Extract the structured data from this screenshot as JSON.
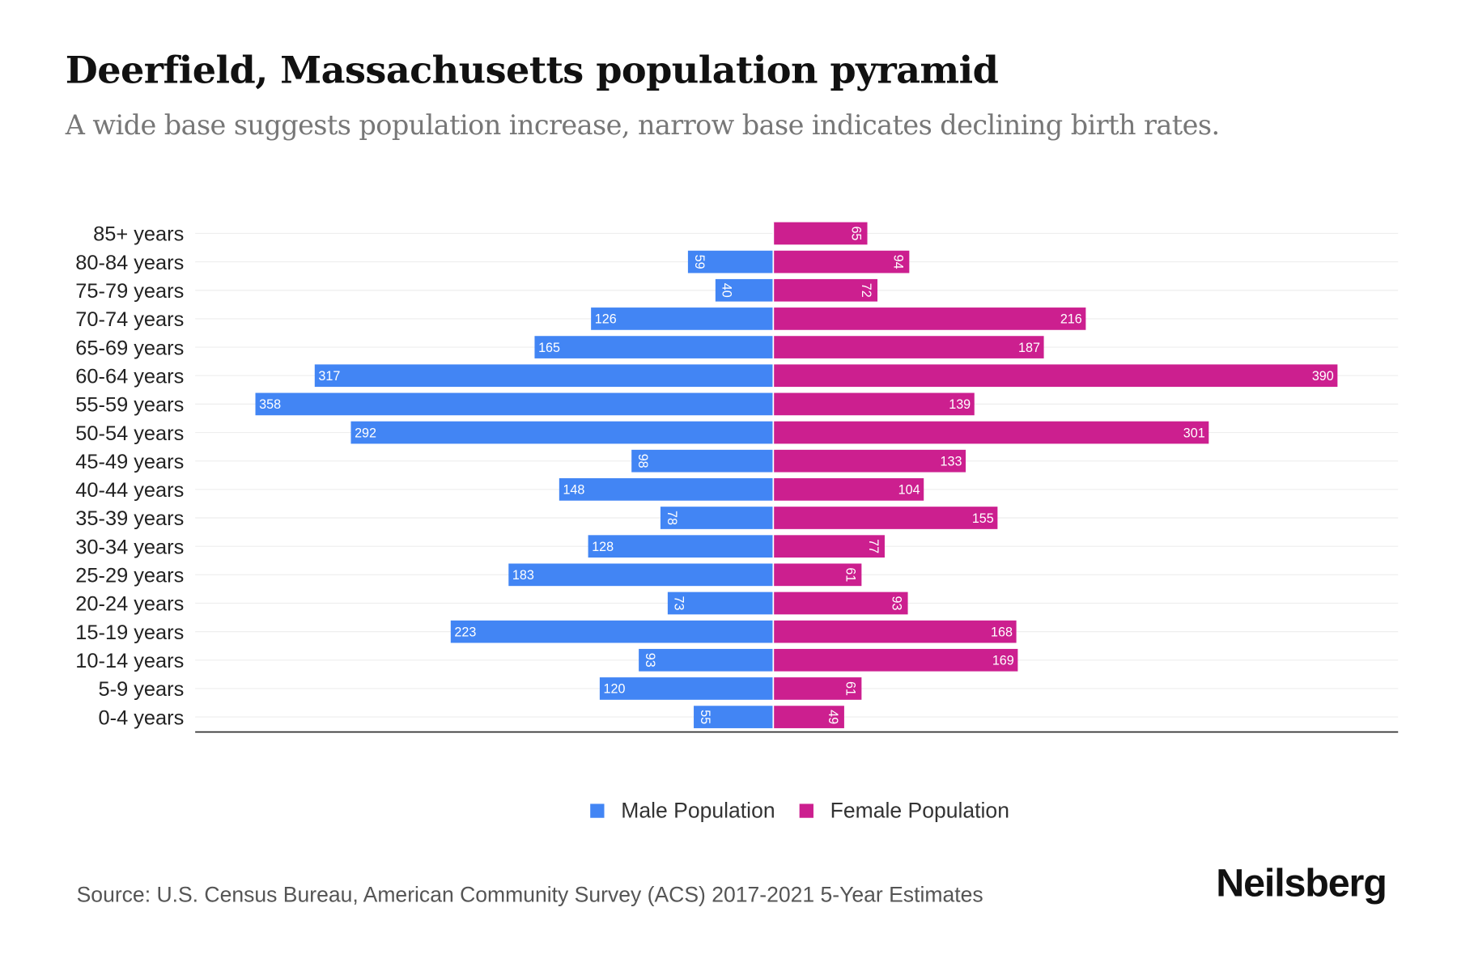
{
  "chart_data": {
    "type": "bar",
    "orientation": "horizontal-pyramid",
    "title": "Deerfield, Massachusetts population pyramid",
    "subtitle": "A wide base suggests population increase, narrow base indicates declining birth rates.",
    "categories": [
      "85+ years",
      "80-84 years",
      "75-79 years",
      "70-74 years",
      "65-69 years",
      "60-64 years",
      "55-59 years",
      "50-54 years",
      "45-49 years",
      "40-44 years",
      "35-39 years",
      "30-34 years",
      "25-29 years",
      "20-24 years",
      "15-19 years",
      "10-14 years",
      "5-9 years",
      "0-4 years"
    ],
    "series": [
      {
        "name": "Male Population",
        "color": "#4285f4",
        "values": [
          0,
          59,
          40,
          126,
          165,
          317,
          358,
          292,
          98,
          148,
          78,
          128,
          183,
          73,
          223,
          93,
          120,
          55
        ]
      },
      {
        "name": "Female Population",
        "color": "#cc1f8f",
        "values": [
          65,
          94,
          72,
          216,
          187,
          390,
          139,
          301,
          133,
          104,
          155,
          77,
          61,
          93,
          168,
          169,
          61,
          49
        ]
      }
    ],
    "legend_position": "bottom-center",
    "grid": true
  },
  "footer": {
    "source": "Source: U.S. Census Bureau, American Community Survey (ACS) 2017-2021 5-Year Estimates",
    "logo": "Neilsberg"
  }
}
